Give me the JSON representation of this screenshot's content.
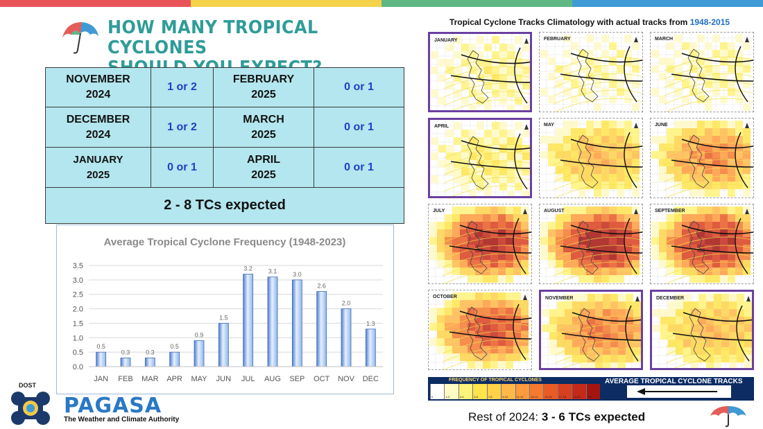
{
  "top_stripe_colors": [
    "#e8545a",
    "#f4d24a",
    "#5fb884",
    "#3f9ad6"
  ],
  "header": {
    "line1": "HOW MANY TROPICAL CYCLONES",
    "line2": "SHOULD YOU EXPECT?"
  },
  "forecast_table": {
    "rows": [
      {
        "m1": "NOVEMBER",
        "y1": "2024",
        "v1": "1 or 2",
        "m2": "FEBRUARY",
        "y2": "2025",
        "v2": "0 or 1"
      },
      {
        "m1": "DECEMBER",
        "y1": "2024",
        "v1": "1 or 2",
        "m2": "MARCH",
        "y2": "2025",
        "v2": "0 or 1"
      },
      {
        "m1": "JANUARY",
        "y1": "2025",
        "v1": "0 or 1",
        "m2": "APRIL",
        "y2": "2025",
        "v2": "0 or 1"
      }
    ],
    "summary": "2 - 8 TCs expected"
  },
  "chart_data": {
    "type": "bar",
    "title": "Average Tropical Cyclone Frequency (1948-2023)",
    "categories": [
      "JAN",
      "FEB",
      "MAR",
      "APR",
      "MAY",
      "JUN",
      "JUL",
      "AUG",
      "SEP",
      "OCT",
      "NOV",
      "DEC"
    ],
    "values": [
      0.5,
      0.3,
      0.3,
      0.5,
      0.9,
      1.5,
      3.2,
      3.1,
      3.0,
      2.6,
      2.0,
      1.3
    ],
    "data_labels": [
      "0.5",
      "0.3",
      "0.3",
      "0.5",
      "0.9",
      "1.5",
      "3.2",
      "3.1",
      "3.0",
      "2.6",
      "2.0",
      "1.3"
    ],
    "ylim": [
      0,
      3.5
    ],
    "yticks": [
      "0.0",
      "0.5",
      "1.0",
      "1.5",
      "2.0",
      "2.5",
      "3.0",
      "3.5"
    ],
    "xlabel": "",
    "ylabel": "",
    "grid": true,
    "bar_color": "#8fb6ea"
  },
  "climatology": {
    "title_prefix": "Tropical Cyclone Tracks Climatology with actual tracks from ",
    "title_years": "1948-2015",
    "months": [
      {
        "name": "JANUARY",
        "highlight": true,
        "intensity": 0.15
      },
      {
        "name": "FEBRUARY",
        "highlight": false,
        "intensity": 0.1
      },
      {
        "name": "MARCH",
        "highlight": false,
        "intensity": 0.12
      },
      {
        "name": "APRIL",
        "highlight": true,
        "intensity": 0.2
      },
      {
        "name": "MAY",
        "highlight": false,
        "intensity": 0.45
      },
      {
        "name": "JUNE",
        "highlight": false,
        "intensity": 0.6
      },
      {
        "name": "JULY",
        "highlight": false,
        "intensity": 0.95
      },
      {
        "name": "AUGUST",
        "highlight": false,
        "intensity": 1.0
      },
      {
        "name": "SEPTEMBER",
        "highlight": false,
        "intensity": 0.95
      },
      {
        "name": "OCTOBER",
        "highlight": false,
        "intensity": 0.8
      },
      {
        "name": "NOVEMBER",
        "highlight": true,
        "intensity": 0.65
      },
      {
        "name": "DECEMBER",
        "highlight": true,
        "intensity": 0.45
      }
    ],
    "legend_title": "FREQUENCY OF TROPICAL CYCLONES",
    "legend_right": "AVERAGE TROPICAL CYCLONE TRACKS",
    "legend_bins": [
      "0",
      "1-2",
      "3-4",
      "5-6",
      "7-8",
      "9-10",
      "11-12",
      "13-14",
      "15-16",
      "17-18",
      "19-20",
      ">20"
    ],
    "legend_colors": [
      "#ffffff",
      "#fff9c4",
      "#fff27a",
      "#ffe44d",
      "#ffd24a",
      "#ffb84a",
      "#ff9a3d",
      "#f57a2e",
      "#e95b25",
      "#d9401f",
      "#c42a1a",
      "#a51510"
    ]
  },
  "footer": {
    "rest_prefix": "Rest of 2024: ",
    "rest_value": "3 - 6 TCs expected",
    "dost": "DOST",
    "pagasa": "PAGASA",
    "tagline": "The Weather and Climate Authority"
  }
}
